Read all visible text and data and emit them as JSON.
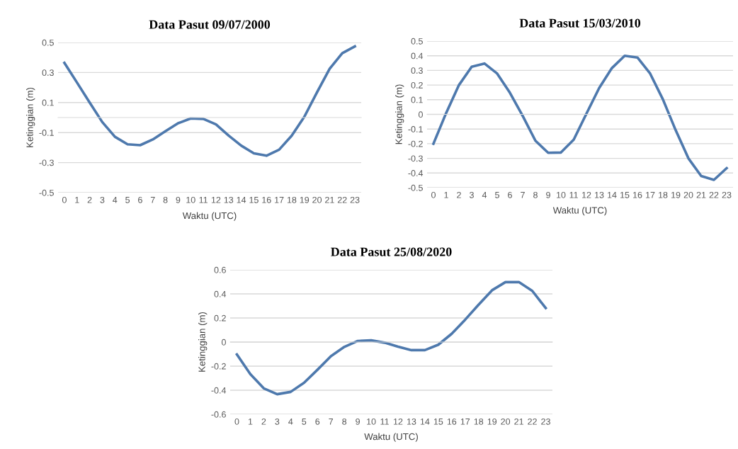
{
  "chart_data": [
    {
      "type": "line",
      "title": "Data Pasut 09/07/2000",
      "xlabel": "Waktu (UTC)",
      "ylabel": "Ketinggian (m)",
      "categories": [
        "0",
        "1",
        "2",
        "3",
        "4",
        "5",
        "6",
        "7",
        "8",
        "9",
        "10",
        "11",
        "12",
        "13",
        "14",
        "15",
        "16",
        "17",
        "18",
        "19",
        "20",
        "21",
        "22",
        "23"
      ],
      "series": [
        {
          "color": "#4e79ad",
          "values": [
            0.364,
            0.233,
            0.1,
            -0.03,
            -0.128,
            -0.178,
            -0.184,
            -0.146,
            -0.091,
            -0.038,
            -0.006,
            -0.009,
            -0.045,
            -0.12,
            -0.187,
            -0.238,
            -0.254,
            -0.214,
            -0.12,
            0.006,
            0.168,
            0.325,
            0.429,
            0.474
          ]
        }
      ],
      "ylim": [
        -0.5,
        0.5
      ],
      "yticks": [
        -0.5,
        -0.3,
        -0.1,
        0.1,
        0.3,
        0.5
      ],
      "grid": "y"
    },
    {
      "type": "line",
      "title": "Data Pasut 15/03/2010",
      "xlabel": "Waktu (UTC)",
      "ylabel": "Ketinggian (m)",
      "categories": [
        "0",
        "1",
        "2",
        "3",
        "4",
        "5",
        "6",
        "7",
        "8",
        "9",
        "10",
        "11",
        "12",
        "13",
        "14",
        "15",
        "16",
        "17",
        "18",
        "19",
        "20",
        "21",
        "22",
        "23"
      ],
      "series": [
        {
          "color": "#4e79ad",
          "values": [
            -0.2,
            0.01,
            0.2,
            0.325,
            0.347,
            0.278,
            0.147,
            -0.01,
            -0.18,
            -0.262,
            -0.26,
            -0.173,
            0.005,
            0.18,
            0.316,
            0.4,
            0.388,
            0.278,
            0.102,
            -0.108,
            -0.3,
            -0.42,
            -0.447,
            -0.367
          ]
        }
      ],
      "ylim": [
        -0.5,
        0.5
      ],
      "yticks": [
        -0.5,
        -0.4,
        -0.3,
        -0.2,
        -0.1,
        0,
        0.1,
        0.2,
        0.3,
        0.4,
        0.5
      ],
      "grid": "y"
    },
    {
      "type": "line",
      "title": "Data Pasut 25/08/2020",
      "xlabel": "Waktu (UTC)",
      "ylabel": "Ketinggian (m)",
      "categories": [
        "0",
        "1",
        "2",
        "3",
        "4",
        "5",
        "6",
        "7",
        "8",
        "9",
        "10",
        "11",
        "12",
        "13",
        "14",
        "15",
        "16",
        "17",
        "18",
        "19",
        "20",
        "21",
        "22",
        "23"
      ],
      "series": [
        {
          "color": "#4e79ad",
          "values": [
            -0.103,
            -0.266,
            -0.384,
            -0.433,
            -0.414,
            -0.338,
            -0.23,
            -0.118,
            -0.04,
            0.009,
            0.014,
            -0.005,
            -0.038,
            -0.067,
            -0.067,
            -0.022,
            0.069,
            0.186,
            0.31,
            0.43,
            0.498,
            0.498,
            0.425,
            0.282
          ]
        }
      ],
      "ylim": [
        -0.6,
        0.6
      ],
      "yticks": [
        -0.6,
        -0.4,
        -0.2,
        0,
        0.2,
        0.4,
        0.6
      ],
      "grid": "y"
    }
  ]
}
